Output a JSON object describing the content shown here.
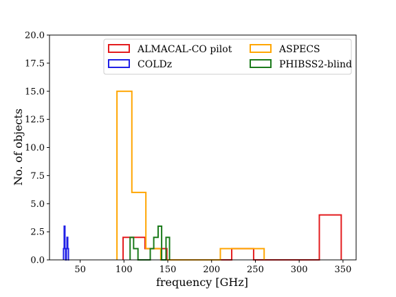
{
  "chart_data": {
    "type": "histogram",
    "xlabel": "frequency [GHz]",
    "ylabel": "No. of objects",
    "xlim": [
      15,
      365
    ],
    "ylim": [
      0,
      20
    ],
    "xticks": [
      50,
      100,
      150,
      200,
      250,
      300,
      350
    ],
    "yticks": [
      0.0,
      2.5,
      5.0,
      7.5,
      10.0,
      12.5,
      15.0,
      17.5,
      20.0
    ],
    "ytick_labels": [
      "0.0",
      "2.5",
      "5.0",
      "7.5",
      "10.0",
      "12.5",
      "15.0",
      "17.5",
      "20.0"
    ],
    "grid": false,
    "legend_position": "top-right",
    "series": [
      {
        "name": "ALMACAL-CO pilot",
        "color": "#e31a1c",
        "bin_edges": [
          99,
          124,
          149,
          174,
          198,
          223,
          248,
          273,
          298,
          323,
          348
        ],
        "counts": [
          2,
          1,
          0,
          0,
          0,
          1,
          0,
          0,
          0,
          4
        ]
      },
      {
        "name": "COLDz",
        "color": "#1f1fe6",
        "bin_edges": [
          31.0,
          31.8,
          32.6,
          33.4,
          34.2,
          35.0,
          35.8,
          36.6,
          37.4
        ],
        "counts": [
          1,
          3,
          1,
          0,
          1,
          2,
          1,
          0
        ]
      },
      {
        "name": "ASPECS",
        "color": "#ffa500",
        "bin_edges": [
          92,
          109,
          125,
          142,
          159,
          176,
          193,
          210,
          226,
          243,
          260
        ],
        "counts": [
          15,
          6,
          1,
          0,
          0,
          0,
          0,
          1,
          1,
          1
        ]
      },
      {
        "name": "PHIBSS2-blind",
        "color": "#1a7a1a",
        "bin_edges": [
          107,
          111,
          116,
          120,
          125,
          130,
          134,
          139,
          143,
          148,
          152
        ],
        "counts": [
          2,
          1,
          0,
          0,
          0,
          1,
          2,
          3,
          0,
          2
        ]
      }
    ]
  }
}
